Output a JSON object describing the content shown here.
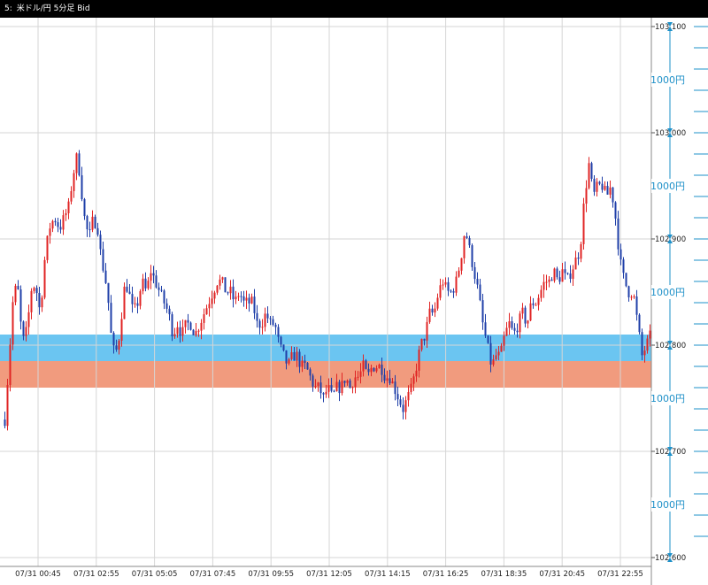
{
  "window": {
    "title_prefix": "5:",
    "title": "米ドル/円 5分足 Bid"
  },
  "colors": {
    "up": "#e02424",
    "down": "#1f3fa8",
    "grid": "#d6d6d6",
    "band_top": "#5bbff0",
    "band_bottom": "#f09070",
    "measure": "#1e90c8"
  },
  "chart_data": {
    "type": "candlestick",
    "title": "米ドル/円 5分足 Bid",
    "ylim": [
      102.6,
      103.1
    ],
    "y_ticks": [
      "103.100",
      "103.000",
      "102.900",
      "102.800",
      "102.700",
      "102.600"
    ],
    "x_ticks": [
      "07/31 00:45",
      "07/31 02:55",
      "07/31 05:05",
      "07/31 07:45",
      "07/31 09:55",
      "07/31 12:05",
      "07/31 14:15",
      "07/31 16:25",
      "07/31 18:35",
      "07/31 20:45",
      "07/31 22:55"
    ],
    "bands": [
      {
        "from": 102.785,
        "to": 102.81,
        "color": "blue"
      },
      {
        "from": 102.76,
        "to": 102.785,
        "color": "orange"
      }
    ],
    "measure_label": "1000円",
    "measure_markers": [
      103.05,
      102.95,
      102.85,
      102.75,
      102.65
    ],
    "path": [
      [
        0,
        102.73
      ],
      [
        5,
        102.79
      ],
      [
        9,
        102.84
      ],
      [
        14,
        102.86
      ],
      [
        18,
        102.82
      ],
      [
        22,
        102.8
      ],
      [
        27,
        102.83
      ],
      [
        31,
        102.86
      ],
      [
        36,
        102.85
      ],
      [
        40,
        102.83
      ],
      [
        45,
        102.88
      ],
      [
        50,
        102.91
      ],
      [
        56,
        102.92
      ],
      [
        62,
        102.91
      ],
      [
        67,
        102.92
      ],
      [
        72,
        102.93
      ],
      [
        77,
        102.96
      ],
      [
        82,
        102.98
      ],
      [
        86,
        102.95
      ],
      [
        90,
        102.92
      ],
      [
        95,
        102.9
      ],
      [
        100,
        102.92
      ],
      [
        105,
        102.91
      ],
      [
        109,
        102.88
      ],
      [
        112,
        102.87
      ],
      [
        116,
        102.85
      ],
      [
        120,
        102.81
      ],
      [
        124,
        102.79
      ],
      [
        128,
        102.8
      ],
      [
        132,
        102.83
      ],
      [
        136,
        102.86
      ],
      [
        140,
        102.85
      ],
      [
        145,
        102.83
      ],
      [
        150,
        102.84
      ],
      [
        155,
        102.86
      ],
      [
        160,
        102.85
      ],
      [
        165,
        102.87
      ],
      [
        170,
        102.86
      ],
      [
        175,
        102.85
      ],
      [
        180,
        102.84
      ],
      [
        185,
        102.83
      ],
      [
        190,
        102.81
      ],
      [
        195,
        102.82
      ],
      [
        200,
        102.81
      ],
      [
        205,
        102.82
      ],
      [
        210,
        102.82
      ],
      [
        215,
        102.81
      ],
      [
        220,
        102.82
      ],
      [
        225,
        102.83
      ],
      [
        230,
        102.84
      ],
      [
        235,
        102.85
      ],
      [
        240,
        102.86
      ],
      [
        245,
        102.86
      ],
      [
        250,
        102.85
      ],
      [
        255,
        102.85
      ],
      [
        260,
        102.84
      ],
      [
        265,
        102.85
      ],
      [
        270,
        102.84
      ],
      [
        275,
        102.84
      ],
      [
        280,
        102.84
      ],
      [
        285,
        102.82
      ],
      [
        290,
        102.82
      ],
      [
        295,
        102.83
      ],
      [
        300,
        102.82
      ],
      [
        305,
        102.82
      ],
      [
        310,
        102.8
      ],
      [
        315,
        102.79
      ],
      [
        320,
        102.78
      ],
      [
        325,
        102.79
      ],
      [
        330,
        102.79
      ],
      [
        335,
        102.78
      ],
      [
        340,
        102.78
      ],
      [
        345,
        102.77
      ],
      [
        350,
        102.76
      ],
      [
        355,
        102.76
      ],
      [
        360,
        102.75
      ],
      [
        365,
        102.76
      ],
      [
        370,
        102.75
      ],
      [
        375,
        102.76
      ],
      [
        380,
        102.76
      ],
      [
        385,
        102.77
      ],
      [
        390,
        102.76
      ],
      [
        395,
        102.77
      ],
      [
        400,
        102.77
      ],
      [
        405,
        102.78
      ],
      [
        410,
        102.77
      ],
      [
        415,
        102.78
      ],
      [
        420,
        102.78
      ],
      [
        425,
        102.78
      ],
      [
        430,
        102.77
      ],
      [
        435,
        102.77
      ],
      [
        440,
        102.76
      ],
      [
        445,
        102.75
      ],
      [
        450,
        102.74
      ],
      [
        455,
        102.75
      ],
      [
        460,
        102.76
      ],
      [
        465,
        102.78
      ],
      [
        470,
        102.8
      ],
      [
        475,
        102.81
      ],
      [
        480,
        102.83
      ],
      [
        485,
        102.83
      ],
      [
        490,
        102.85
      ],
      [
        495,
        102.86
      ],
      [
        500,
        102.85
      ],
      [
        505,
        102.85
      ],
      [
        510,
        102.86
      ],
      [
        515,
        102.88
      ],
      [
        520,
        102.91
      ],
      [
        525,
        102.89
      ],
      [
        530,
        102.87
      ],
      [
        535,
        102.85
      ],
      [
        540,
        102.82
      ],
      [
        545,
        102.8
      ],
      [
        550,
        102.78
      ],
      [
        555,
        102.79
      ],
      [
        560,
        102.79
      ],
      [
        565,
        102.81
      ],
      [
        570,
        102.82
      ],
      [
        575,
        102.81
      ],
      [
        580,
        102.82
      ],
      [
        585,
        102.83
      ],
      [
        590,
        102.82
      ],
      [
        595,
        102.84
      ],
      [
        600,
        102.84
      ],
      [
        605,
        102.85
      ],
      [
        610,
        102.86
      ],
      [
        615,
        102.86
      ],
      [
        620,
        102.87
      ],
      [
        625,
        102.86
      ],
      [
        630,
        102.87
      ],
      [
        635,
        102.86
      ],
      [
        640,
        102.87
      ],
      [
        645,
        102.88
      ],
      [
        650,
        102.89
      ],
      [
        655,
        102.94
      ],
      [
        660,
        102.97
      ],
      [
        665,
        102.94
      ],
      [
        670,
        102.95
      ],
      [
        675,
        102.95
      ],
      [
        680,
        102.94
      ],
      [
        685,
        102.95
      ],
      [
        690,
        102.92
      ],
      [
        695,
        102.88
      ],
      [
        700,
        102.86
      ],
      [
        705,
        102.85
      ],
      [
        710,
        102.85
      ],
      [
        715,
        102.82
      ],
      [
        720,
        102.79
      ],
      [
        725,
        102.8
      ],
      [
        730,
        102.81
      ]
    ]
  }
}
